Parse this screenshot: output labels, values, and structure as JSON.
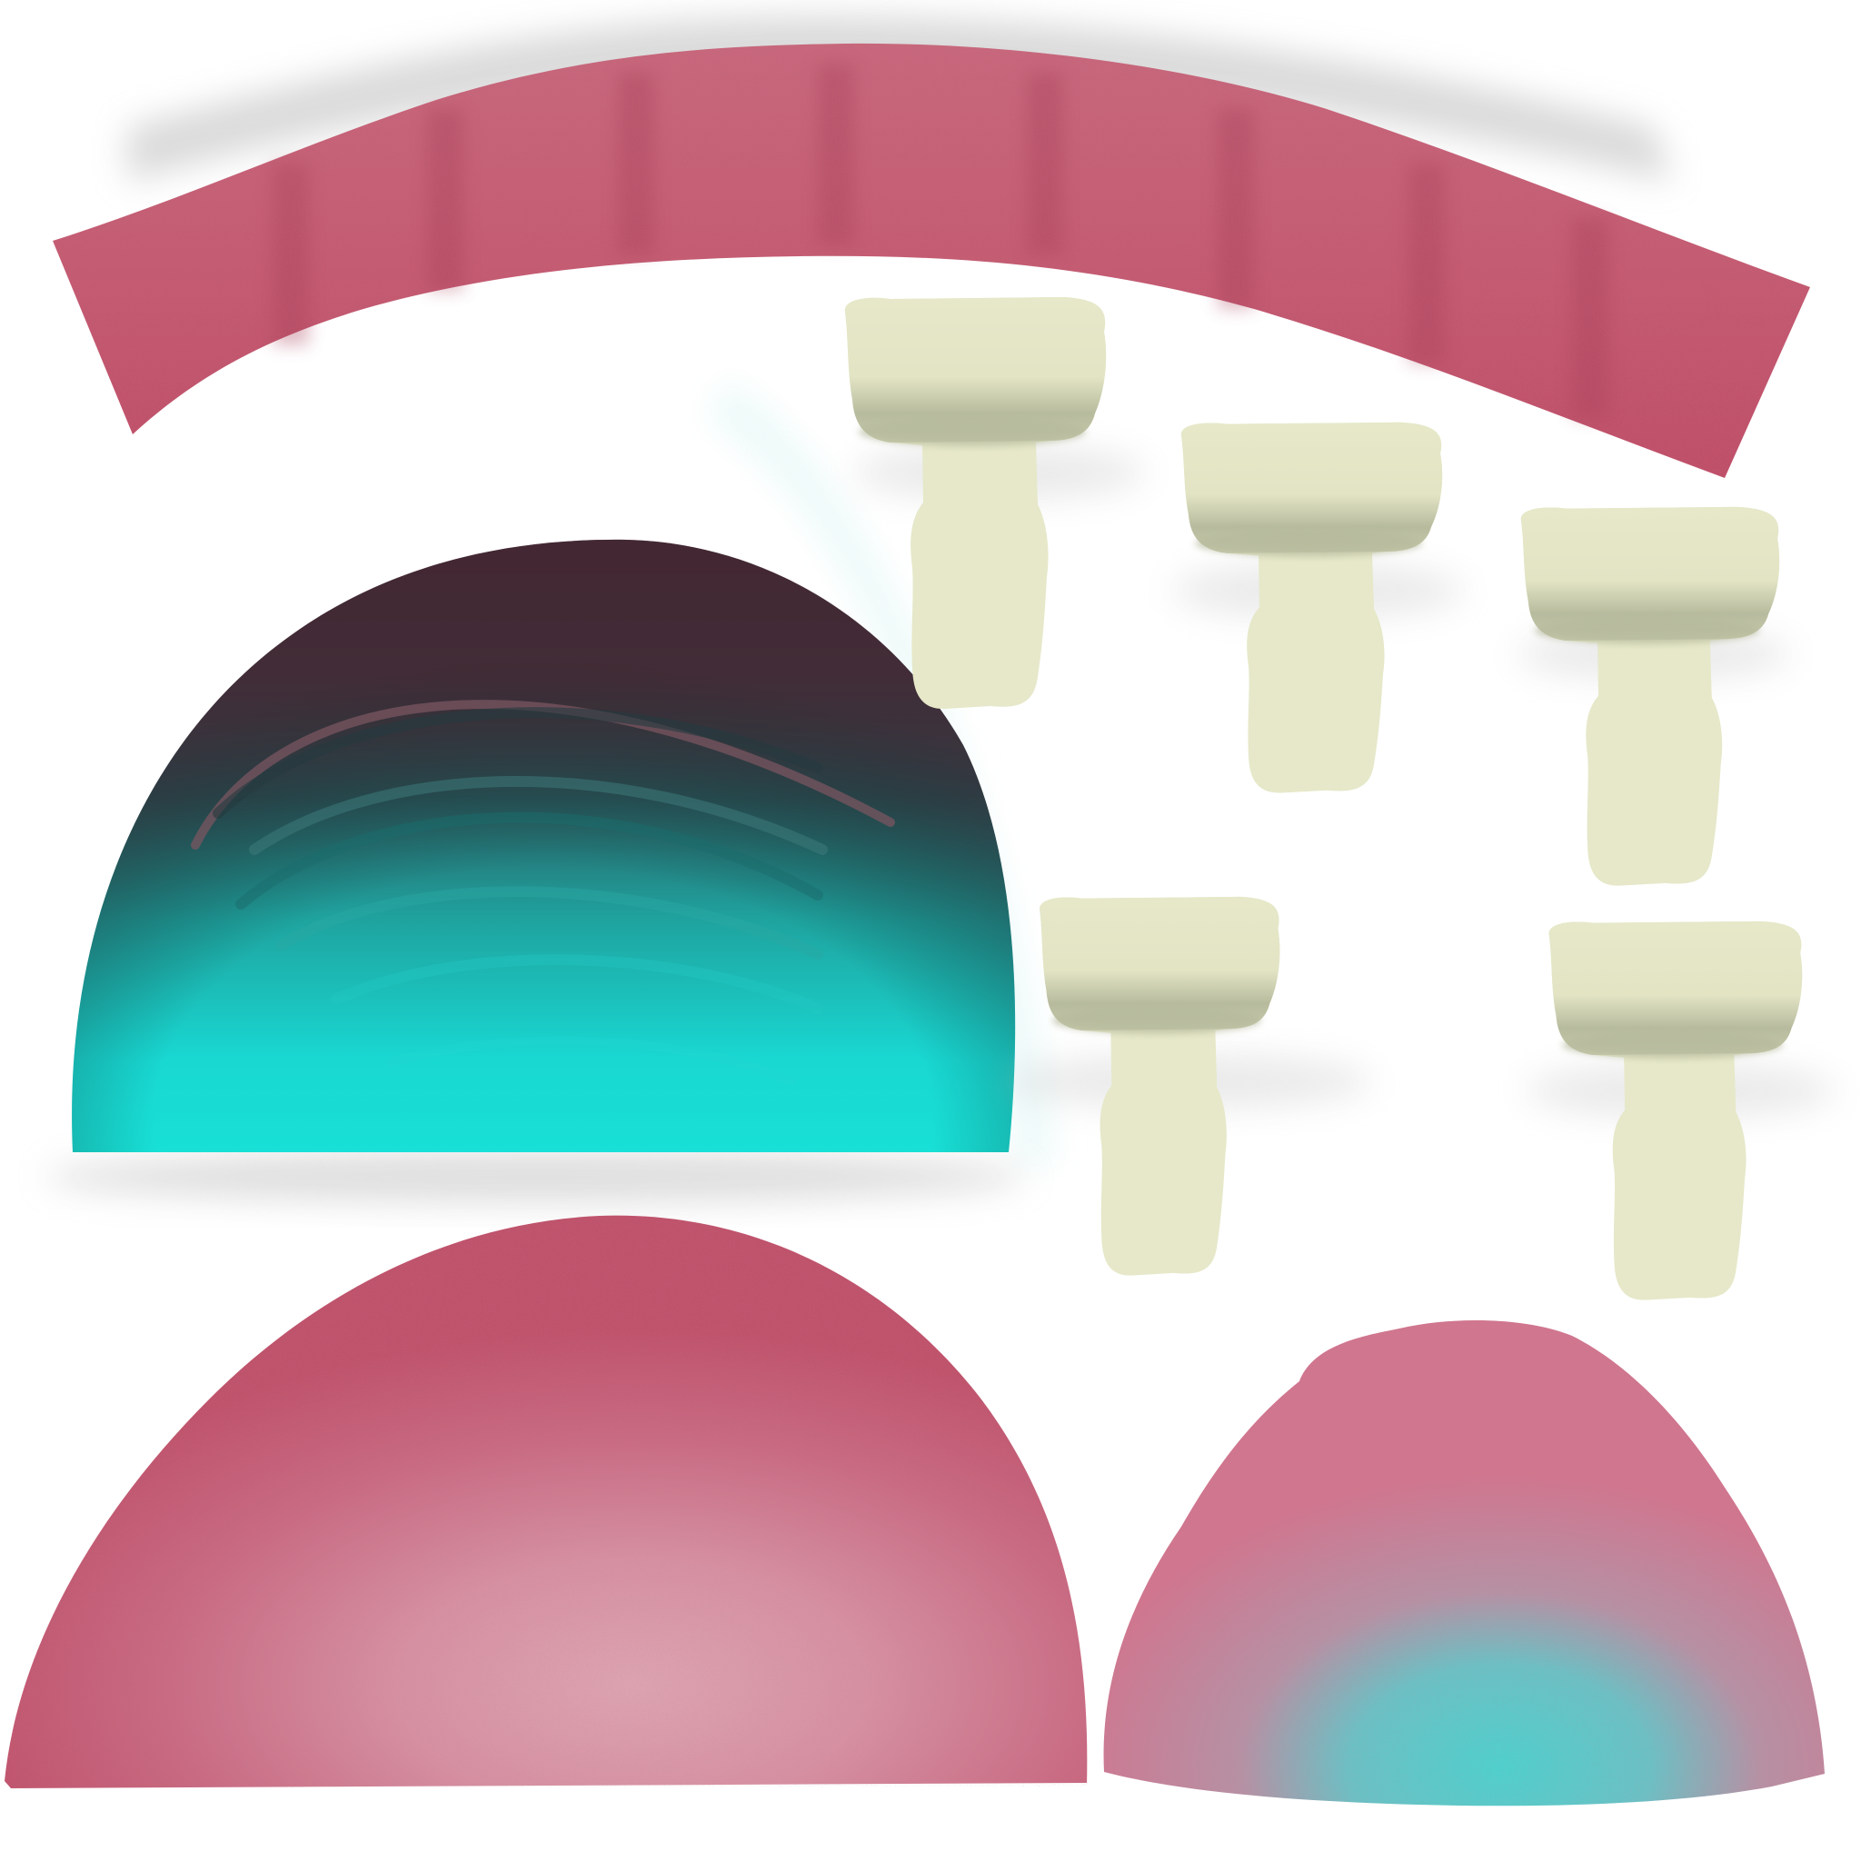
{
  "texture_atlas": {
    "colors": {
      "background": "#ffffff",
      "gum_pink": "#c0566e",
      "gum_pink_light": "#d7a0ad",
      "gum_pink_highlight": "#e2b3bf",
      "tooth_cream": "#e6e8c9",
      "tooth_shadow": "#b5b99b",
      "throat_dark": "#4a2a33",
      "throat_teal": "#18e0d6",
      "throat_mid_teal": "#1fa5a2",
      "tongue_teal": "#4fd0cc",
      "speckle": "#9a3d52",
      "drop_shadow": "#bdbdbd"
    },
    "parts": [
      {
        "name": "upper-gum-strip",
        "material": "gum"
      },
      {
        "name": "mouth-cavity-dome",
        "material": "throat"
      },
      {
        "name": "lower-gum-dome",
        "material": "gum"
      },
      {
        "name": "tongue-dome",
        "material": "tongue"
      },
      {
        "name": "molar-tooth",
        "material": "tooth",
        "count": 5
      }
    ]
  }
}
